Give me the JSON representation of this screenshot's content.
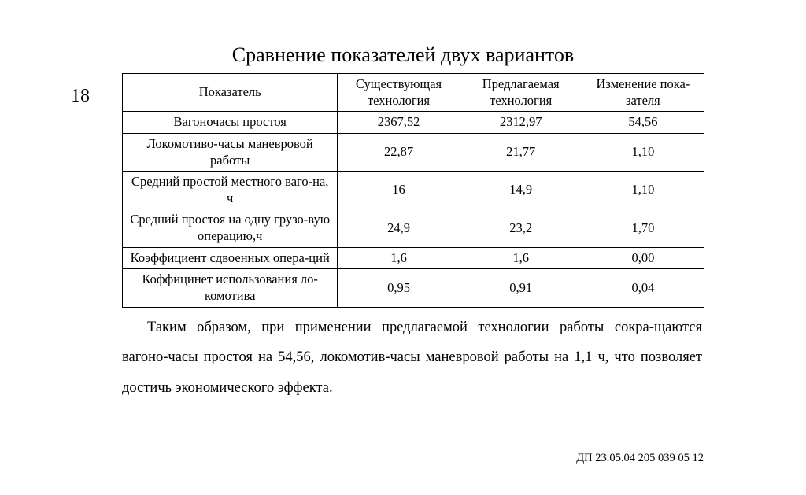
{
  "page_number": "18",
  "title": "Сравнение показателей двух вариантов",
  "table": {
    "columns": [
      "Показатель",
      "Существующая технология",
      "Предлагаемая технология",
      "Изменение пока-зателя"
    ],
    "rows": [
      [
        "Вагоночасы простоя",
        "2367,52",
        "2312,97",
        "54,56"
      ],
      [
        "Локомотиво-часы маневровой работы",
        "22,87",
        "21,77",
        "1,10"
      ],
      [
        "Средний простой местного ваго-на, ч",
        "16",
        "14,9",
        "1,10"
      ],
      [
        "Средний простоя на одну грузо-вую операцию,ч",
        "24,9",
        "23,2",
        "1,70"
      ],
      [
        "Коэффициент сдвоенных опера-ций",
        "1,6",
        "1,6",
        "0,00"
      ],
      [
        "Коффицинет использования ло-комотива",
        "0,95",
        "0,91",
        "0,04"
      ]
    ],
    "border_color": "#000000",
    "font_size": 16.5,
    "col_widths_pct": [
      37,
      21,
      21,
      21
    ]
  },
  "paragraph": "Таким образом, при применении предлагаемой технологии работы сокра-щаются вагоно-часы простоя на 54,56, локомотив-часы маневровой работы на 1,1 ч, что позволяет достичь экономического эффекта.",
  "footer_code": "ДП 23.05.04 205 039  05 12",
  "styles": {
    "background_color": "#ffffff",
    "text_color": "#000000",
    "title_fontsize": 26,
    "page_number_fontsize": 24,
    "paragraph_fontsize": 18.5,
    "footer_fontsize": 14.5,
    "font_family": "Times New Roman"
  }
}
